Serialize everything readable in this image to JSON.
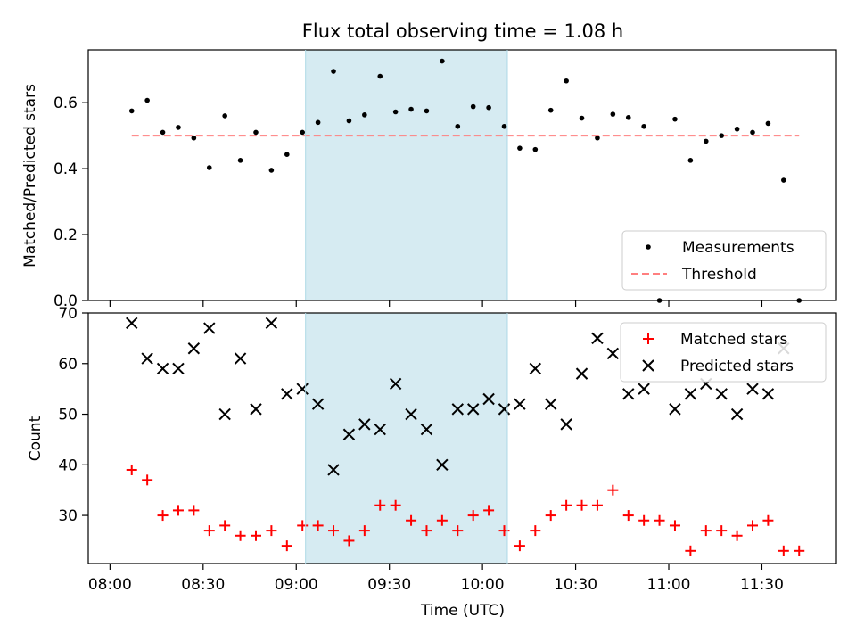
{
  "chart_data": [
    {
      "type": "scatter",
      "title": "Flux total observing time = 1.08 h",
      "xlabel": "",
      "ylabel": "Matched/Predicted stars",
      "ylim": [
        0,
        0.76
      ],
      "xlim": [
        "07:53",
        "11:54"
      ],
      "yticks": [
        "0.0",
        "0.2",
        "0.4",
        "0.6"
      ],
      "grid": false,
      "legend_position": "lower-right",
      "highlight_span": [
        "09:03",
        "10:08"
      ],
      "highlight_color": "#add8e6",
      "series": [
        {
          "name": "Measurements",
          "color": "#000000",
          "marker": "dot",
          "points": [
            [
              "08:07",
              0.575
            ],
            [
              "08:12",
              0.607
            ],
            [
              "08:17",
              0.51
            ],
            [
              "08:22",
              0.525
            ],
            [
              "08:27",
              0.493
            ],
            [
              "08:32",
              0.403
            ],
            [
              "08:37",
              0.56
            ],
            [
              "08:42",
              0.425
            ],
            [
              "08:47",
              0.51
            ],
            [
              "08:52",
              0.395
            ],
            [
              "08:57",
              0.443
            ],
            [
              "09:02",
              0.51
            ],
            [
              "09:07",
              0.54
            ],
            [
              "09:12",
              0.695
            ],
            [
              "09:17",
              0.545
            ],
            [
              "09:22",
              0.563
            ],
            [
              "09:27",
              0.68
            ],
            [
              "09:32",
              0.572
            ],
            [
              "09:37",
              0.58
            ],
            [
              "09:42",
              0.575
            ],
            [
              "09:47",
              0.726
            ],
            [
              "09:52",
              0.528
            ],
            [
              "09:57",
              0.588
            ],
            [
              "10:02",
              0.585
            ],
            [
              "10:07",
              0.528
            ],
            [
              "10:12",
              0.462
            ],
            [
              "10:17",
              0.458
            ],
            [
              "10:22",
              0.577
            ],
            [
              "10:27",
              0.666
            ],
            [
              "10:32",
              0.553
            ],
            [
              "10:37",
              0.493
            ],
            [
              "10:42",
              0.565
            ],
            [
              "10:47",
              0.555
            ],
            [
              "10:52",
              0.528
            ],
            [
              "10:57",
              0.0
            ],
            [
              "11:02",
              0.55
            ],
            [
              "11:07",
              0.425
            ],
            [
              "11:12",
              0.483
            ],
            [
              "11:17",
              0.5
            ],
            [
              "11:22",
              0.52
            ],
            [
              "11:27",
              0.51
            ],
            [
              "11:32",
              0.537
            ],
            [
              "11:37",
              0.365
            ],
            [
              "11:42",
              0.0
            ]
          ]
        },
        {
          "name": "Threshold",
          "color": "#ff7f7f",
          "marker": "dashed-line",
          "points": [
            [
              "08:07",
              0.5
            ],
            [
              "11:42",
              0.5
            ]
          ]
        }
      ]
    },
    {
      "type": "scatter",
      "title": "",
      "xlabel": "Time (UTC)",
      "ylabel": "Count",
      "ylim": [
        20.5,
        70
      ],
      "xlim": [
        "07:53",
        "11:54"
      ],
      "xticks": [
        "08:00",
        "08:30",
        "09:00",
        "09:30",
        "10:00",
        "10:30",
        "11:00",
        "11:30"
      ],
      "yticks": [
        "30",
        "40",
        "50",
        "60",
        "70"
      ],
      "grid": false,
      "legend_position": "top-right",
      "highlight_span": [
        "09:03",
        "10:08"
      ],
      "highlight_color": "#add8e6",
      "series": [
        {
          "name": "Matched stars",
          "color": "#ff0000",
          "marker": "plus",
          "points": [
            [
              "08:07",
              39
            ],
            [
              "08:12",
              37
            ],
            [
              "08:17",
              30
            ],
            [
              "08:22",
              31
            ],
            [
              "08:27",
              31
            ],
            [
              "08:32",
              27
            ],
            [
              "08:37",
              28
            ],
            [
              "08:42",
              26
            ],
            [
              "08:47",
              26
            ],
            [
              "08:52",
              27
            ],
            [
              "08:57",
              24
            ],
            [
              "09:02",
              28
            ],
            [
              "09:07",
              28
            ],
            [
              "09:12",
              27
            ],
            [
              "09:17",
              25
            ],
            [
              "09:22",
              27
            ],
            [
              "09:27",
              32
            ],
            [
              "09:32",
              32
            ],
            [
              "09:37",
              29
            ],
            [
              "09:42",
              27
            ],
            [
              "09:47",
              29
            ],
            [
              "09:52",
              27
            ],
            [
              "09:57",
              30
            ],
            [
              "10:02",
              31
            ],
            [
              "10:07",
              27
            ],
            [
              "10:12",
              24
            ],
            [
              "10:17",
              27
            ],
            [
              "10:22",
              30
            ],
            [
              "10:27",
              32
            ],
            [
              "10:32",
              32
            ],
            [
              "10:37",
              32
            ],
            [
              "10:42",
              35
            ],
            [
              "10:47",
              30
            ],
            [
              "10:52",
              29
            ],
            [
              "10:57",
              29
            ],
            [
              "11:02",
              28
            ],
            [
              "11:07",
              23
            ],
            [
              "11:12",
              27
            ],
            [
              "11:17",
              27
            ],
            [
              "11:22",
              26
            ],
            [
              "11:27",
              28
            ],
            [
              "11:32",
              29
            ],
            [
              "11:37",
              23
            ],
            [
              "11:42",
              23
            ]
          ]
        },
        {
          "name": "Predicted stars",
          "color": "#000000",
          "marker": "x",
          "points": [
            [
              "08:07",
              68
            ],
            [
              "08:12",
              61
            ],
            [
              "08:17",
              59
            ],
            [
              "08:22",
              59
            ],
            [
              "08:27",
              63
            ],
            [
              "08:32",
              67
            ],
            [
              "08:37",
              50
            ],
            [
              "08:42",
              61
            ],
            [
              "08:47",
              51
            ],
            [
              "08:52",
              68
            ],
            [
              "08:57",
              54
            ],
            [
              "09:02",
              55
            ],
            [
              "09:07",
              52
            ],
            [
              "09:12",
              39
            ],
            [
              "09:17",
              46
            ],
            [
              "09:22",
              48
            ],
            [
              "09:27",
              47
            ],
            [
              "09:32",
              56
            ],
            [
              "09:37",
              50
            ],
            [
              "09:42",
              47
            ],
            [
              "09:47",
              40
            ],
            [
              "09:52",
              51
            ],
            [
              "09:57",
              51
            ],
            [
              "10:02",
              53
            ],
            [
              "10:07",
              51
            ],
            [
              "10:12",
              52
            ],
            [
              "10:17",
              59
            ],
            [
              "10:22",
              52
            ],
            [
              "10:27",
              48
            ],
            [
              "10:32",
              58
            ],
            [
              "10:37",
              65
            ],
            [
              "10:42",
              62
            ],
            [
              "10:47",
              54
            ],
            [
              "10:52",
              55
            ],
            [
              "11:02",
              51
            ],
            [
              "11:07",
              54
            ],
            [
              "11:12",
              56
            ],
            [
              "11:17",
              54
            ],
            [
              "11:22",
              50
            ],
            [
              "11:27",
              55
            ],
            [
              "11:32",
              54
            ],
            [
              "11:37",
              63
            ]
          ]
        }
      ]
    }
  ]
}
